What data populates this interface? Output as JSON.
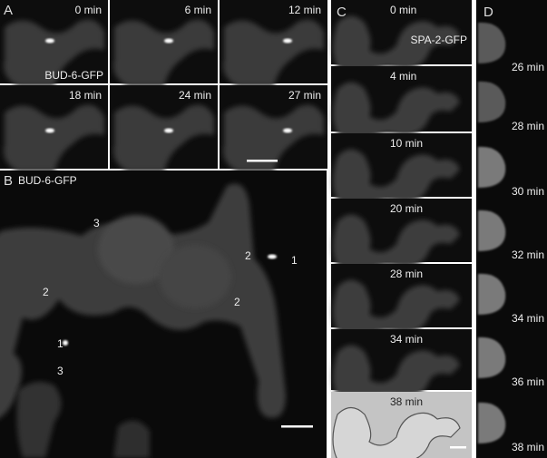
{
  "panel_a": {
    "label": "A",
    "marker": "BUD-6-GFP",
    "times": [
      "0 min",
      "6 min",
      "12 min",
      "18 min",
      "24 min",
      "27 min"
    ]
  },
  "panel_b": {
    "label": "B",
    "marker": "BUD-6-GFP",
    "annotations": [
      "3",
      "2",
      "1",
      "2",
      "2",
      "1",
      "3"
    ]
  },
  "panel_c": {
    "label": "C",
    "marker": "SPA-2-GFP",
    "times": [
      "0 min",
      "4 min",
      "10 min",
      "20 min",
      "28 min",
      "34 min",
      "38 min"
    ]
  },
  "panel_d": {
    "label": "D",
    "times": [
      "26 min",
      "28 min",
      "30 min",
      "32 min",
      "34 min",
      "36 min",
      "38 min"
    ]
  }
}
